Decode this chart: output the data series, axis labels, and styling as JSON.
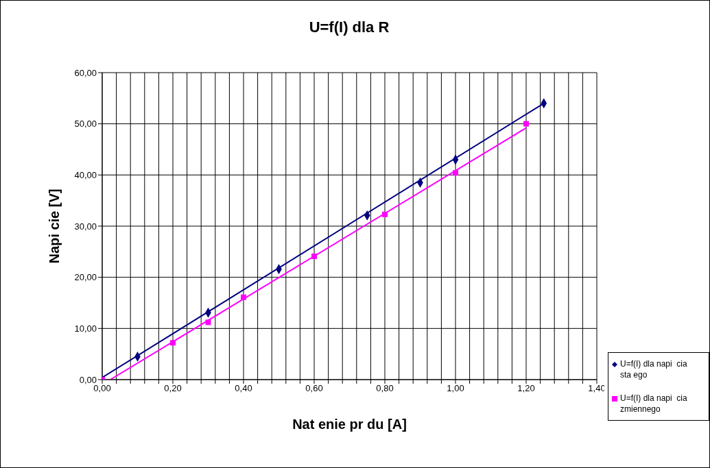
{
  "chart_data": {
    "type": "scatter",
    "title": "U=f(I) dla R",
    "xlabel": "Nat    enie pr  du [A]",
    "ylabel": "Napi  cie [V]",
    "xlim": [
      0,
      1.4
    ],
    "xticks": [
      {
        "value": 0,
        "label": "0,00"
      },
      {
        "value": 0.04,
        "label": null
      },
      {
        "value": 0.08,
        "label": null
      },
      {
        "value": 0.12,
        "label": null
      },
      {
        "value": 0.16,
        "label": null
      },
      {
        "value": 0.2,
        "label": "0,20"
      },
      {
        "value": 0.24,
        "label": null
      },
      {
        "value": 0.28,
        "label": null
      },
      {
        "value": 0.32,
        "label": null
      },
      {
        "value": 0.36,
        "label": null
      },
      {
        "value": 0.4,
        "label": "0,40"
      },
      {
        "value": 0.44,
        "label": null
      },
      {
        "value": 0.48,
        "label": null
      },
      {
        "value": 0.52,
        "label": null
      },
      {
        "value": 0.56,
        "label": null
      },
      {
        "value": 0.6,
        "label": "0,60"
      },
      {
        "value": 0.64,
        "label": null
      },
      {
        "value": 0.68,
        "label": null
      },
      {
        "value": 0.72,
        "label": null
      },
      {
        "value": 0.76,
        "label": null
      },
      {
        "value": 0.8,
        "label": "0,80"
      },
      {
        "value": 0.84,
        "label": null
      },
      {
        "value": 0.88,
        "label": null
      },
      {
        "value": 0.92,
        "label": null
      },
      {
        "value": 0.96,
        "label": null
      },
      {
        "value": 1,
        "label": "1,00"
      },
      {
        "value": 1.04,
        "label": null
      },
      {
        "value": 1.08,
        "label": null
      },
      {
        "value": 1.12,
        "label": null
      },
      {
        "value": 1.16,
        "label": null
      },
      {
        "value": 1.2,
        "label": "1,20"
      },
      {
        "value": 1.24,
        "label": null
      },
      {
        "value": 1.28,
        "label": null
      },
      {
        "value": 1.32,
        "label": null
      },
      {
        "value": 1.36,
        "label": null
      },
      {
        "value": 1.4,
        "label": "1,40"
      }
    ],
    "ylim": [
      0,
      60
    ],
    "yticks": [
      {
        "value": 0,
        "label": "0,00"
      },
      {
        "value": 10,
        "label": "10,00"
      },
      {
        "value": 20,
        "label": "20,00"
      },
      {
        "value": 30,
        "label": "30,00"
      },
      {
        "value": 40,
        "label": "40,00"
      },
      {
        "value": 50,
        "label": "50,00"
      },
      {
        "value": 60,
        "label": "60,00"
      }
    ],
    "grid": true,
    "legend": "bottom right",
    "series": [
      {
        "name": "U=f(I) dla napi  cia sta ego",
        "marker": "diamond",
        "color": "#000080",
        "x": [
          0.1,
          0.3,
          0.5,
          0.75,
          0.9,
          1.0,
          1.25
        ],
        "values": [
          4.5,
          13.1,
          21.6,
          32.1,
          38.5,
          43.0,
          54.0
        ]
      },
      {
        "name": "U=f(I) dla napi  cia zmiennego",
        "marker": "square",
        "color": "#ff00ff",
        "x": [
          0,
          0.2,
          0.3,
          0.4,
          0.6,
          0.8,
          1.0,
          1.2
        ],
        "values": [
          0,
          7.2,
          11.2,
          16.1,
          24.1,
          32.3,
          40.4,
          50.0
        ]
      },
      {
        "type": "line",
        "marker": "none",
        "color": "#000080",
        "x": [
          0,
          1.25
        ],
        "values": [
          0.4,
          54.0
        ]
      },
      {
        "type": "line",
        "marker": "none",
        "color": "#ff00ff",
        "x": [
          0.023,
          1.2
        ],
        "values": [
          0,
          49.2
        ]
      }
    ]
  }
}
